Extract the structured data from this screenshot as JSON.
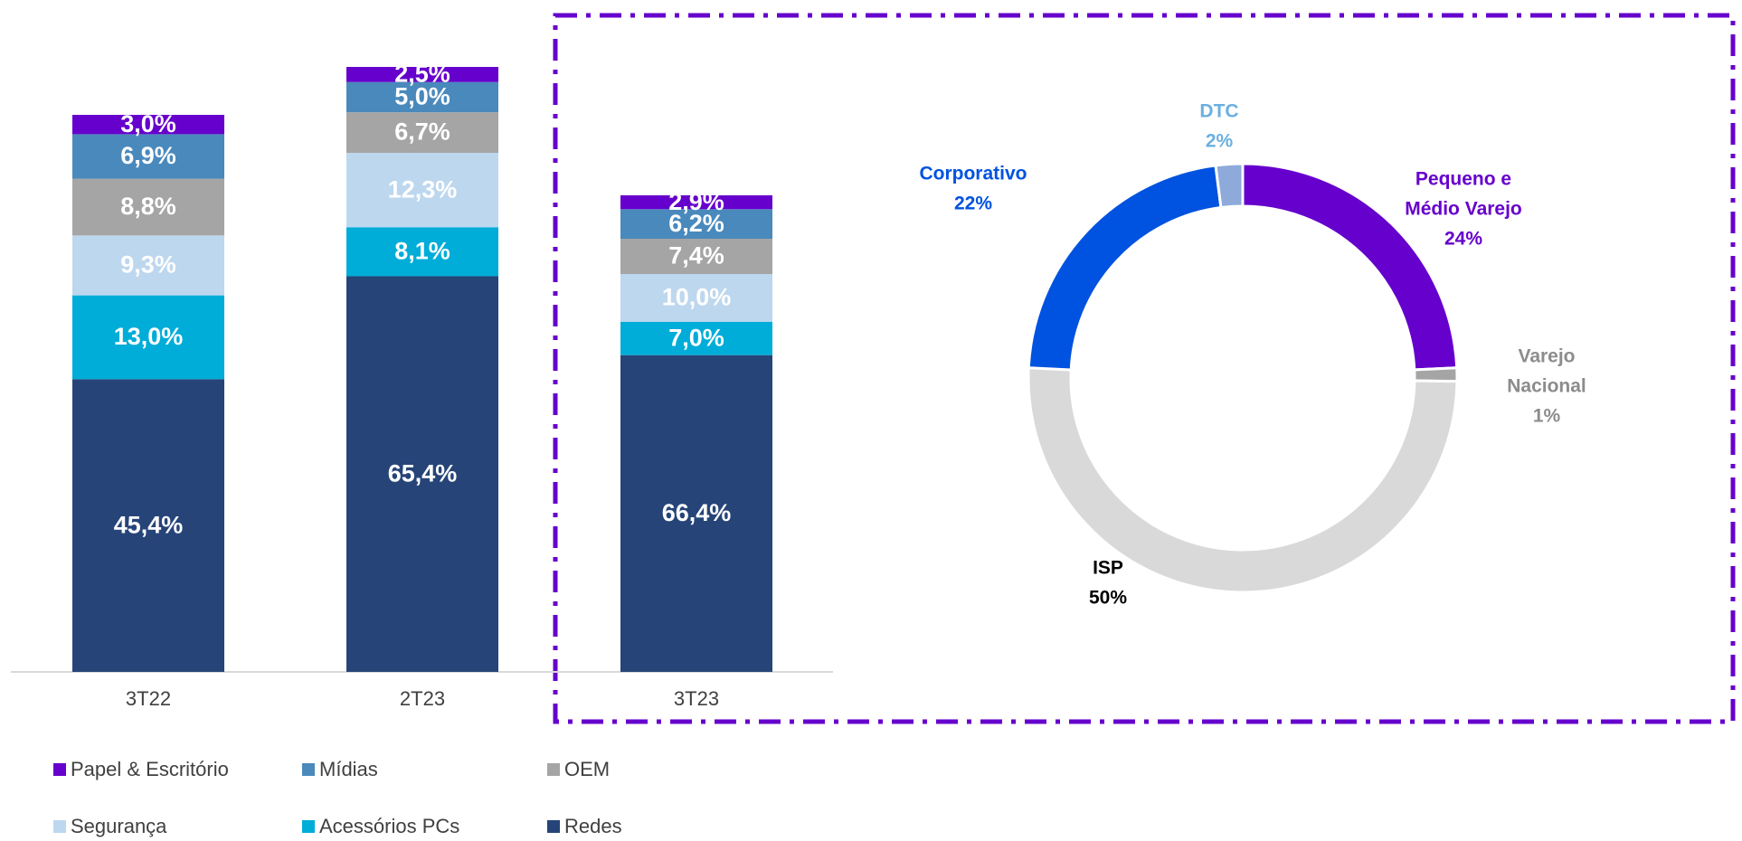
{
  "chart_data": [
    {
      "type": "bar",
      "stacked": true,
      "categories": [
        "3T22",
        "2T23",
        "3T23"
      ],
      "series": [
        {
          "name": "Redes",
          "color": "#264478",
          "values": [
            45.4,
            65.4,
            66.4
          ],
          "value_labels": [
            "45,4%",
            "65,4%",
            "66,4%"
          ]
        },
        {
          "name": "Acessórios PCs",
          "color": "#00acd8",
          "values": [
            13.0,
            8.1,
            7.0
          ],
          "value_labels": [
            "13,0%",
            "8,1%",
            "7,0%"
          ]
        },
        {
          "name": "Segurança",
          "color": "#bdd7ee",
          "values": [
            9.3,
            12.3,
            10.0
          ],
          "value_labels": [
            "9,3%",
            "12,3%",
            "10,0%"
          ]
        },
        {
          "name": "OEM",
          "color": "#a5a5a5",
          "values": [
            8.8,
            6.7,
            7.4
          ],
          "value_labels": [
            "8,8%",
            "6,7%",
            "7,4%"
          ]
        },
        {
          "name": "Mídias",
          "color": "#4a89bc",
          "values": [
            6.9,
            5.0,
            6.2
          ],
          "value_labels": [
            "6,9%",
            "5,0%",
            "6,2%"
          ]
        },
        {
          "name": "Papel & Escritório",
          "color": "#6600cc",
          "values": [
            3.0,
            2.5,
            2.9
          ],
          "value_labels": [
            "3,0%",
            "2,5%",
            "2,9%"
          ]
        }
      ]
    },
    {
      "type": "donut",
      "labels": [
        [
          "Pequeno e",
          "Médio Varejo"
        ],
        [
          "Varejo",
          "Nacional"
        ],
        [
          "ISP"
        ],
        [
          "Corporativo"
        ],
        [
          "DTC"
        ]
      ],
      "values": [
        24,
        1,
        50,
        22,
        2
      ],
      "value_labels": [
        "24%",
        "1%",
        "50%",
        "22%",
        "2%"
      ],
      "colors": [
        "#6600cc",
        "#a5a5a5",
        "#d9d9d9",
        "#0052e0",
        "#8eaadb"
      ],
      "label_colors": [
        "#6600cc",
        "#8c8c8c",
        "#000000",
        "#0052e0",
        "#6ab0e0"
      ]
    }
  ]
}
